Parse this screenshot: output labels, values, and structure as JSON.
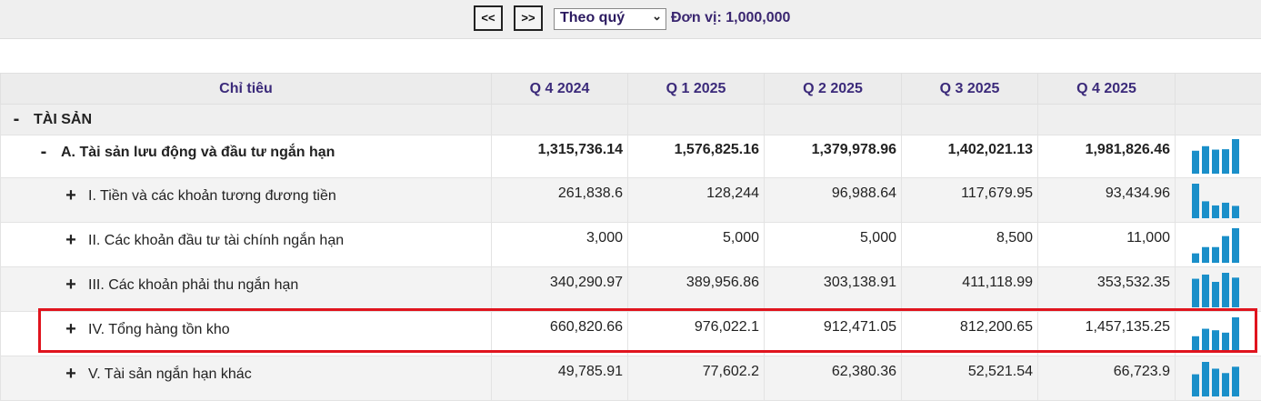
{
  "toolbar": {
    "prev_label": "<<",
    "next_label": ">>",
    "period_selected": "Theo quý",
    "unit_label": "Đơn vị: 1,000,000"
  },
  "table": {
    "header_label": "Chỉ tiêu",
    "columns": [
      "Q 4 2024",
      "Q 1 2025",
      "Q 2 2025",
      "Q 3 2025",
      "Q 4 2025"
    ],
    "group": {
      "toggle": "-",
      "label": "TÀI SẢN"
    },
    "section": {
      "toggle": "-",
      "label": "A. Tài sản lưu động và đầu tư ngắn hạn",
      "values": [
        "1,315,736.14",
        "1,576,825.16",
        "1,379,978.96",
        "1,402,021.13",
        "1,981,826.46"
      ],
      "spark": [
        1315736.14,
        1576825.16,
        1379978.96,
        1402021.13,
        1981826.46
      ]
    },
    "rows": [
      {
        "toggle": "+",
        "label": "I. Tiền và các khoản tương đương tiền",
        "values": [
          "261,838.6",
          "128,244",
          "96,988.64",
          "117,679.95",
          "93,434.96"
        ],
        "spark": [
          261838.6,
          128244,
          96988.64,
          117679.95,
          93434.96
        ]
      },
      {
        "toggle": "+",
        "label": "II. Các khoản đầu tư tài chính ngắn hạn",
        "values": [
          "3,000",
          "5,000",
          "5,000",
          "8,500",
          "11,000"
        ],
        "spark": [
          3000,
          5000,
          5000,
          8500,
          11000
        ]
      },
      {
        "toggle": "+",
        "label": "III. Các khoản phải thu ngắn hạn",
        "values": [
          "340,290.97",
          "389,956.86",
          "303,138.91",
          "411,118.99",
          "353,532.35"
        ],
        "spark": [
          340290.97,
          389956.86,
          303138.91,
          411118.99,
          353532.35
        ]
      },
      {
        "toggle": "+",
        "label": "IV. Tổng hàng tồn kho",
        "values": [
          "660,820.66",
          "976,022.1",
          "912,471.05",
          "812,200.65",
          "1,457,135.25"
        ],
        "spark": [
          660820.66,
          976022.1,
          912471.05,
          812200.65,
          1457135.25
        ]
      },
      {
        "toggle": "+",
        "label": "V. Tài sản ngắn hạn khác",
        "values": [
          "49,785.91",
          "77,602.2",
          "62,380.36",
          "52,521.54",
          "66,723.9"
        ],
        "spark": [
          49785.91,
          77602.2,
          62380.36,
          52521.54,
          66723.9
        ]
      }
    ]
  },
  "colors": {
    "spark_bar": "#1a8fc9",
    "highlight": "#e0141e",
    "header_text": "#3b2a7a"
  }
}
